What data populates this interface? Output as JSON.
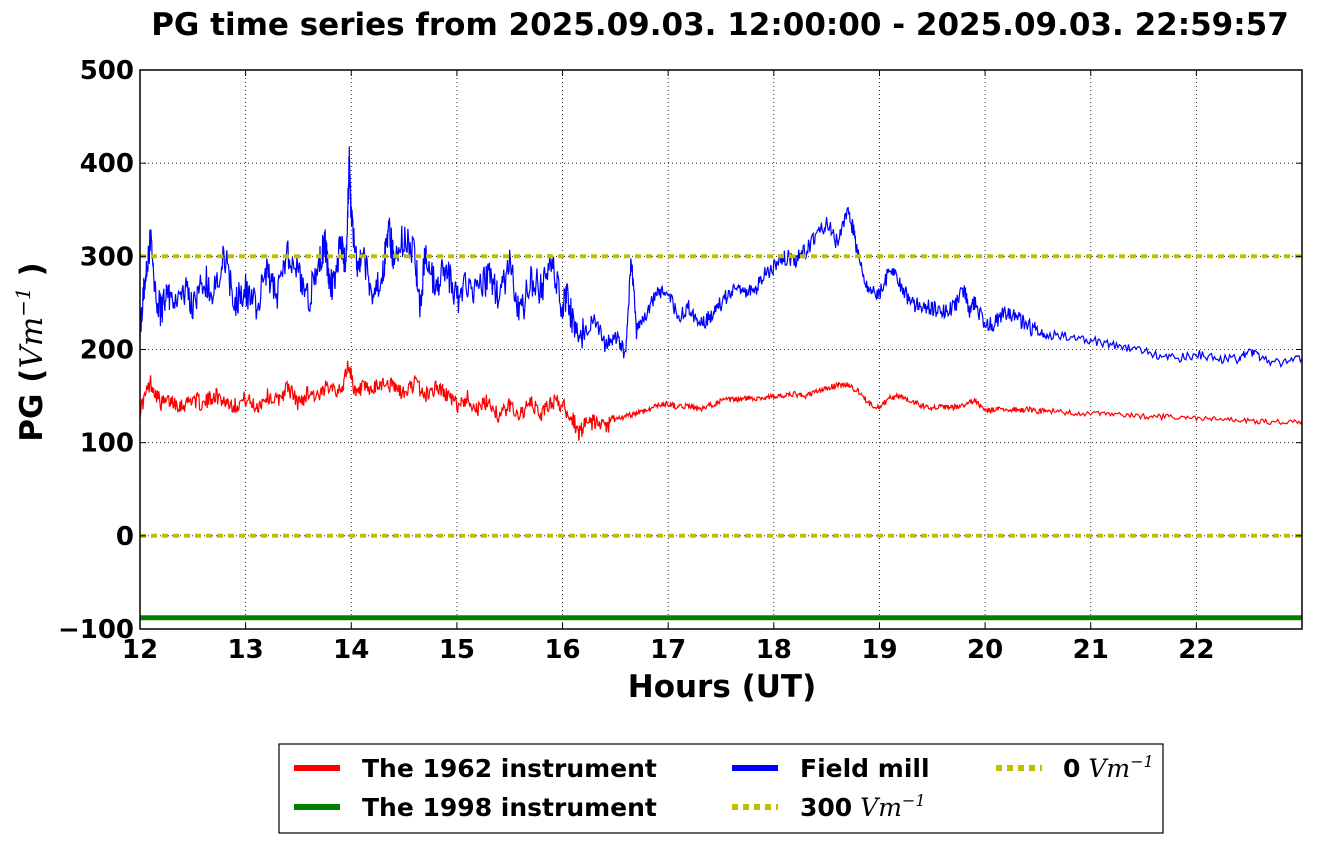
{
  "chart_data": {
    "type": "line",
    "title": "PG time series from 2025.09.03. 12:00:00 - 2025.09.03. 22:59:57",
    "xlabel": "Hours (UT)",
    "ylabel": "PG",
    "ylabel_unit": "Vm",
    "ylabel_unit_exp": "−1",
    "xlim": [
      12,
      23
    ],
    "ylim": [
      -100,
      500
    ],
    "x_ticks": [
      12,
      13,
      14,
      15,
      16,
      17,
      18,
      19,
      20,
      21,
      22
    ],
    "y_ticks": [
      -100,
      0,
      100,
      200,
      300,
      400,
      500
    ],
    "y_tick_labels": [
      "−100",
      "0",
      "100",
      "200",
      "300",
      "400",
      "500"
    ],
    "grid": true,
    "legend_placement": "below",
    "series": [
      {
        "name": "The 1962 instrument",
        "color": "#ff0000",
        "style": "solid",
        "x": [
          12.0,
          12.1,
          12.2,
          12.3,
          12.4,
          12.5,
          12.6,
          12.7,
          12.8,
          12.9,
          13.0,
          13.1,
          13.2,
          13.3,
          13.4,
          13.5,
          13.6,
          13.7,
          13.8,
          13.9,
          13.97,
          14.05,
          14.1,
          14.2,
          14.3,
          14.4,
          14.5,
          14.6,
          14.7,
          14.8,
          14.9,
          15.0,
          15.1,
          15.2,
          15.3,
          15.4,
          15.5,
          15.6,
          15.7,
          15.8,
          15.9,
          16.0,
          16.1,
          16.15,
          16.2,
          16.3,
          16.4,
          16.5,
          16.6,
          16.7,
          16.8,
          16.9,
          17.0,
          17.1,
          17.2,
          17.3,
          17.4,
          17.5,
          17.6,
          17.7,
          17.8,
          17.9,
          18.0,
          18.1,
          18.2,
          18.3,
          18.4,
          18.5,
          18.6,
          18.7,
          18.8,
          18.9,
          19.0,
          19.1,
          19.2,
          19.3,
          19.4,
          19.5,
          19.6,
          19.7,
          19.8,
          19.9,
          20.0,
          20.1,
          20.2,
          20.3,
          20.4,
          20.5,
          20.6,
          20.8,
          21.0,
          21.2,
          21.4,
          21.6,
          21.8,
          22.0,
          22.2,
          22.4,
          22.6,
          22.8,
          23.0
        ],
        "y": [
          135,
          165,
          142,
          145,
          140,
          148,
          140,
          152,
          145,
          140,
          147,
          138,
          150,
          145,
          160,
          142,
          155,
          148,
          165,
          152,
          185,
          150,
          158,
          155,
          165,
          160,
          152,
          165,
          150,
          160,
          152,
          140,
          148,
          135,
          145,
          128,
          140,
          130,
          142,
          130,
          145,
          140,
          125,
          110,
          118,
          122,
          115,
          125,
          128,
          132,
          135,
          140,
          142,
          138,
          140,
          135,
          140,
          145,
          146,
          147,
          148,
          148,
          150,
          150,
          152,
          150,
          155,
          158,
          162,
          162,
          155,
          142,
          138,
          148,
          150,
          145,
          140,
          138,
          138,
          138,
          140,
          145,
          135,
          135,
          136,
          135,
          136,
          134,
          134,
          132,
          131,
          130,
          129,
          128,
          127,
          126,
          125,
          124,
          123,
          122,
          123
        ]
      },
      {
        "name": "The 1998 instrument",
        "color": "#008000",
        "style": "solid",
        "x": [
          12.0,
          23.0
        ],
        "y": [
          -88,
          -88
        ]
      },
      {
        "name": "Field mill",
        "color": "#0000ff",
        "style": "solid",
        "x": [
          12.0,
          12.05,
          12.1,
          12.15,
          12.2,
          12.25,
          12.3,
          12.4,
          12.5,
          12.6,
          12.7,
          12.8,
          12.9,
          13.0,
          13.1,
          13.2,
          13.3,
          13.4,
          13.5,
          13.6,
          13.7,
          13.75,
          13.8,
          13.85,
          13.9,
          13.95,
          13.98,
          14.0,
          14.05,
          14.1,
          14.2,
          14.3,
          14.35,
          14.4,
          14.5,
          14.6,
          14.65,
          14.7,
          14.8,
          14.9,
          15.0,
          15.1,
          15.2,
          15.3,
          15.4,
          15.5,
          15.6,
          15.7,
          15.8,
          15.9,
          16.0,
          16.05,
          16.1,
          16.2,
          16.3,
          16.4,
          16.5,
          16.6,
          16.65,
          16.7,
          16.8,
          16.9,
          17.0,
          17.1,
          17.2,
          17.3,
          17.4,
          17.5,
          17.6,
          17.7,
          17.8,
          17.9,
          18.0,
          18.1,
          18.2,
          18.3,
          18.4,
          18.5,
          18.6,
          18.7,
          18.75,
          18.8,
          18.9,
          19.0,
          19.1,
          19.2,
          19.3,
          19.4,
          19.5,
          19.6,
          19.7,
          19.8,
          19.85,
          19.9,
          20.0,
          20.1,
          20.2,
          20.3,
          20.4,
          20.5,
          20.6,
          20.8,
          21.0,
          21.2,
          21.4,
          21.6,
          21.8,
          22.0,
          22.2,
          22.4,
          22.5,
          22.6,
          22.8,
          23.0
        ],
        "y": [
          225,
          280,
          320,
          260,
          240,
          265,
          250,
          270,
          245,
          275,
          265,
          300,
          250,
          265,
          245,
          280,
          260,
          300,
          285,
          255,
          295,
          315,
          265,
          280,
          320,
          285,
          405,
          340,
          290,
          305,
          260,
          285,
          330,
          300,
          320,
          305,
          250,
          300,
          265,
          290,
          250,
          270,
          260,
          280,
          255,
          290,
          235,
          275,
          265,
          290,
          245,
          255,
          225,
          215,
          235,
          205,
          215,
          195,
          300,
          220,
          240,
          265,
          260,
          235,
          245,
          225,
          235,
          250,
          265,
          265,
          260,
          280,
          290,
          300,
          295,
          305,
          325,
          335,
          315,
          345,
          330,
          300,
          265,
          260,
          285,
          270,
          250,
          245,
          245,
          240,
          245,
          265,
          240,
          250,
          225,
          230,
          240,
          235,
          225,
          220,
          215,
          215,
          210,
          205,
          200,
          195,
          190,
          195,
          190,
          190,
          200,
          190,
          185,
          190
        ]
      },
      {
        "name": "300 Vm−1",
        "label_value": "300",
        "label_unit": "Vm",
        "label_exp": "−1",
        "color": "#bfbf00",
        "style": "dotted",
        "x": [
          12.0,
          23.0
        ],
        "y": [
          300,
          300
        ]
      },
      {
        "name": "0 Vm−1",
        "label_value": "0",
        "label_unit": "Vm",
        "label_exp": "−1",
        "color": "#bfbf00",
        "style": "dotted",
        "x": [
          12.0,
          23.0
        ],
        "y": [
          0,
          0
        ]
      }
    ]
  }
}
